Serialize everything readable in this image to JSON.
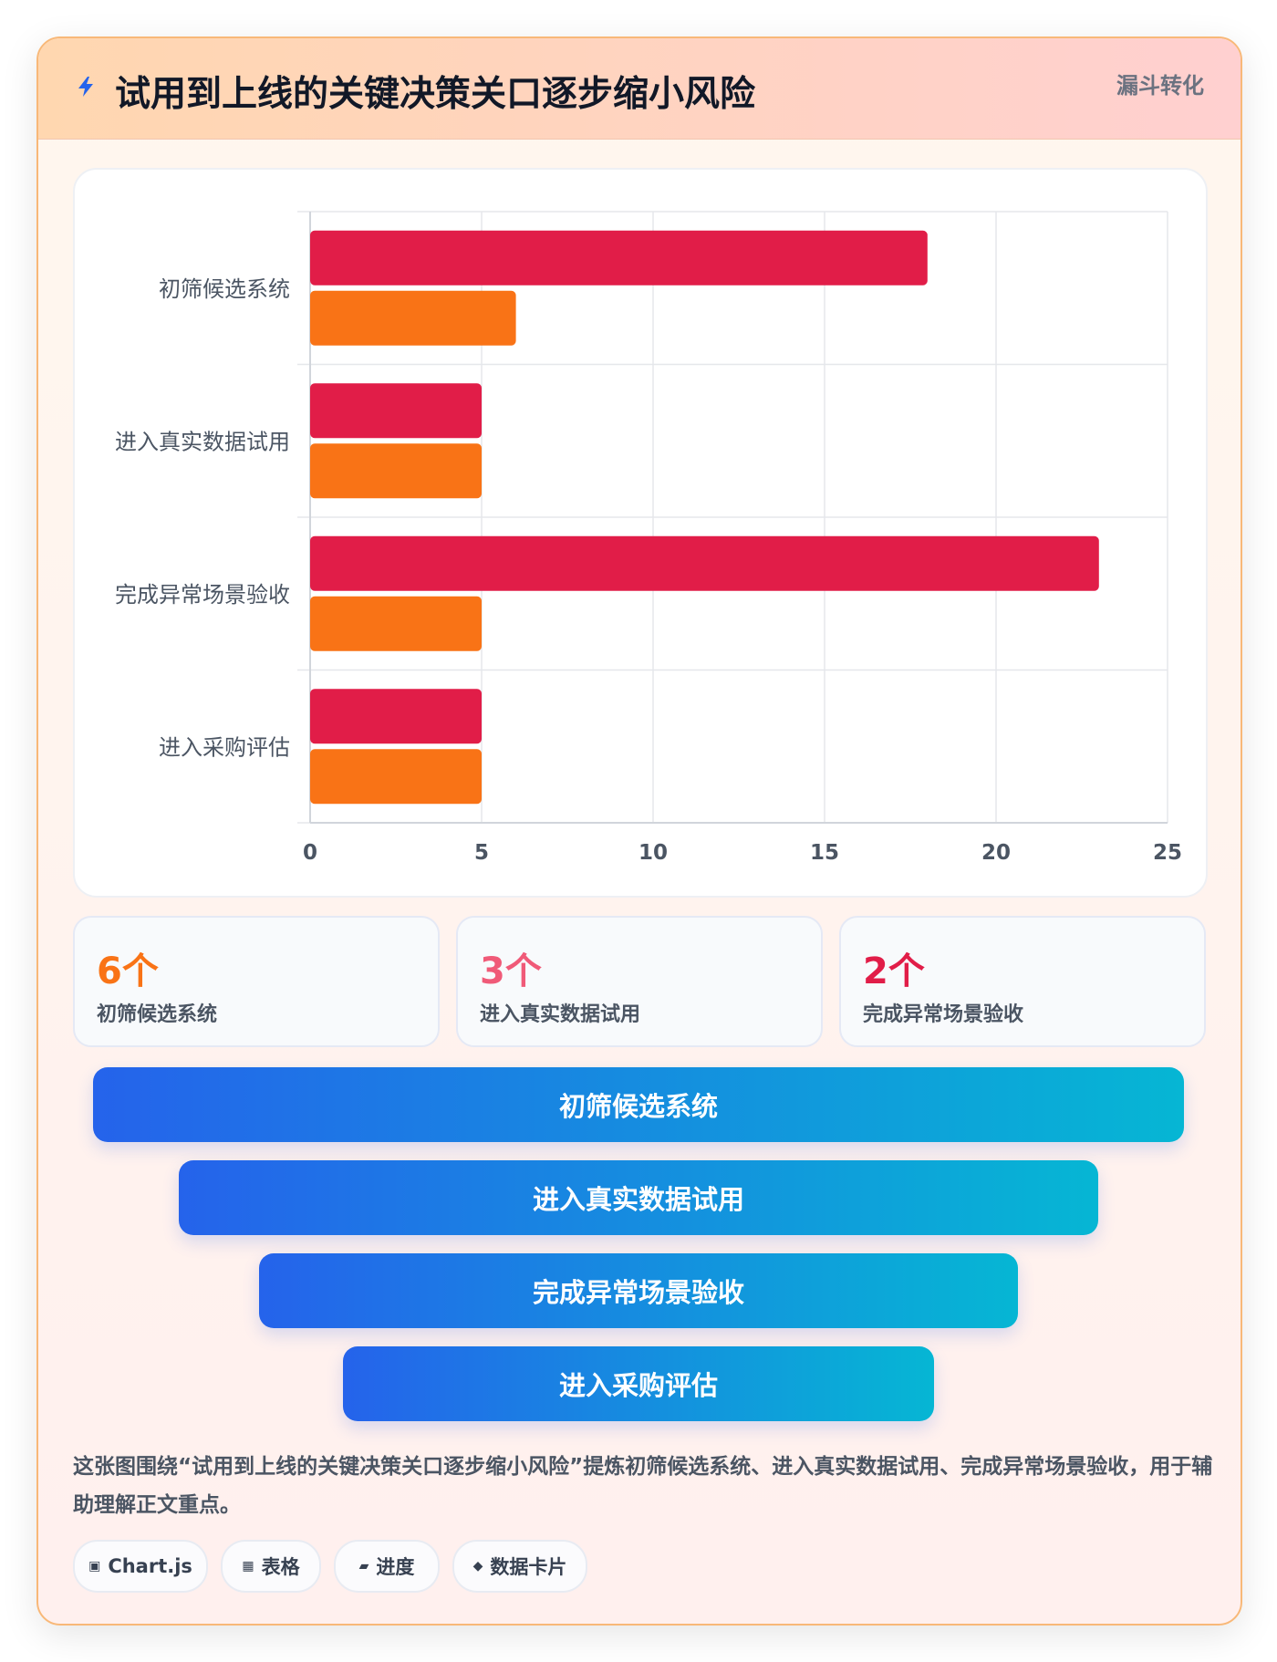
{
  "header": {
    "title": "试用到上线的关键决策关口逐步缩小风险",
    "tag": "漏斗转化"
  },
  "chart_data": {
    "type": "bar",
    "orientation": "horizontal",
    "categories": [
      "初筛候选系统",
      "进入真实数据试用",
      "完成异常场景验收",
      "进入采购评估"
    ],
    "series": [
      {
        "values": [
          18,
          5,
          23,
          5
        ],
        "color": "#e11d48"
      },
      {
        "values": [
          6,
          5,
          5,
          5
        ],
        "color": "#f97316"
      }
    ],
    "xlim": [
      0,
      25
    ],
    "xticks": [
      0,
      5,
      10,
      15,
      20,
      25
    ],
    "grid": true,
    "legend": "none"
  },
  "stats": [
    {
      "value": "6个",
      "label": "初筛候选系统",
      "color": "#f97316"
    },
    {
      "value": "3个",
      "label": "进入真实数据试用",
      "color": "#f05a78"
    },
    {
      "value": "2个",
      "label": "完成异常场景验收",
      "color": "#e11d48"
    }
  ],
  "funnel": [
    "初筛候选系统",
    "进入真实数据试用",
    "完成异常场景验收",
    "进入采购评估"
  ],
  "description": "这张图围绕“试用到上线的关键决策关口逐步缩小风险”提炼初筛候选系统、进入真实数据试用、完成异常场景验收，用于辅助理解正文重点。",
  "chips": [
    {
      "icon": "▣",
      "icon_name": "chart-icon",
      "label": "Chart.js"
    },
    {
      "icon": "▦",
      "icon_name": "table-icon",
      "label": "表格"
    },
    {
      "icon": "▰",
      "icon_name": "progress-icon",
      "label": "进度"
    },
    {
      "icon": "◆",
      "icon_name": "data-card-icon",
      "label": "数据卡片"
    }
  ]
}
